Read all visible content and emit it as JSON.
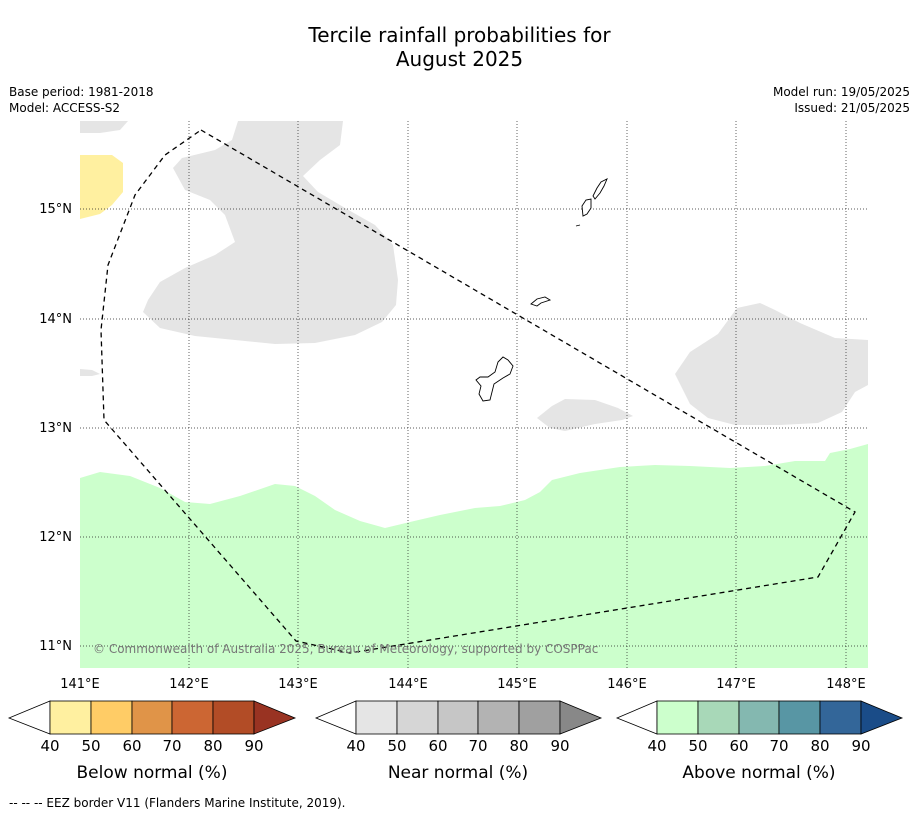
{
  "title_line1": "Tercile rainfall probabilities for",
  "title_line2": "August 2025",
  "base_period": "Base period: 1981-2018",
  "model": "Model: ACCESS-S2",
  "model_run": "Model run: 19/05/2025",
  "issued": "Issued: 21/05/2025",
  "lat_labels": [
    "15°N",
    "14°N",
    "13°N",
    "12°N",
    "11°N"
  ],
  "lon_labels": [
    "141°E",
    "142°E",
    "143°E",
    "144°E",
    "145°E",
    "146°E",
    "147°E",
    "148°E"
  ],
  "copyright": "© Commonwealth of Australia 2025, Bureau of Meteorology, supported by COSPPac",
  "colorbars": [
    {
      "label": "Below normal (%)",
      "ticks": [
        "40",
        "50",
        "60",
        "70",
        "80",
        "90"
      ],
      "colors": [
        "#ffffff",
        "#fff0a0",
        "#ffcc66",
        "#e09448",
        "#cc6633",
        "#b24c26",
        "#993322"
      ]
    },
    {
      "label": "Near normal (%)",
      "ticks": [
        "40",
        "50",
        "60",
        "70",
        "80",
        "90"
      ],
      "colors": [
        "#ffffff",
        "#e5e5e5",
        "#d6d6d6",
        "#c6c6c6",
        "#b3b3b3",
        "#a0a0a0",
        "#888888"
      ]
    },
    {
      "label": "Above normal (%)",
      "ticks": [
        "40",
        "50",
        "60",
        "70",
        "80",
        "90"
      ],
      "colors": [
        "#ffffff",
        "#ccffcc",
        "#a8d8b8",
        "#84b8b0",
        "#5896a4",
        "#336699",
        "#1a4c88"
      ]
    }
  ],
  "footnote": "--  --  -- EEZ border V11 (Flanders Marine Institute, 2019)."
}
